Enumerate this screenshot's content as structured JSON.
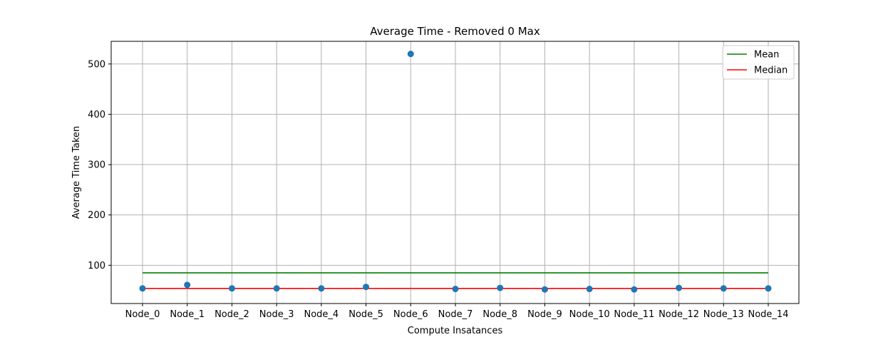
{
  "chart_data": {
    "type": "scatter",
    "title": "Average Time - Removed 0 Max",
    "xlabel": "Compute Insatances",
    "ylabel": "Average Time Taken",
    "categories": [
      "Node_0",
      "Node_1",
      "Node_2",
      "Node_3",
      "Node_4",
      "Node_5",
      "Node_6",
      "Node_7",
      "Node_8",
      "Node_9",
      "Node_10",
      "Node_11",
      "Node_12",
      "Node_13",
      "Node_14"
    ],
    "values": [
      54,
      61,
      54,
      54,
      54,
      57,
      520,
      53,
      55,
      52,
      53,
      52,
      55,
      54,
      54
    ],
    "point_color": "#1f77b4",
    "yticks": [
      100,
      200,
      300,
      400,
      500
    ],
    "ylim": [
      24,
      545
    ],
    "grid": true,
    "lines": [
      {
        "name": "Mean",
        "value": 85,
        "color": "#008000"
      },
      {
        "name": "Median",
        "value": 54,
        "color": "#ff0000"
      }
    ],
    "legend_position": "top-right"
  }
}
